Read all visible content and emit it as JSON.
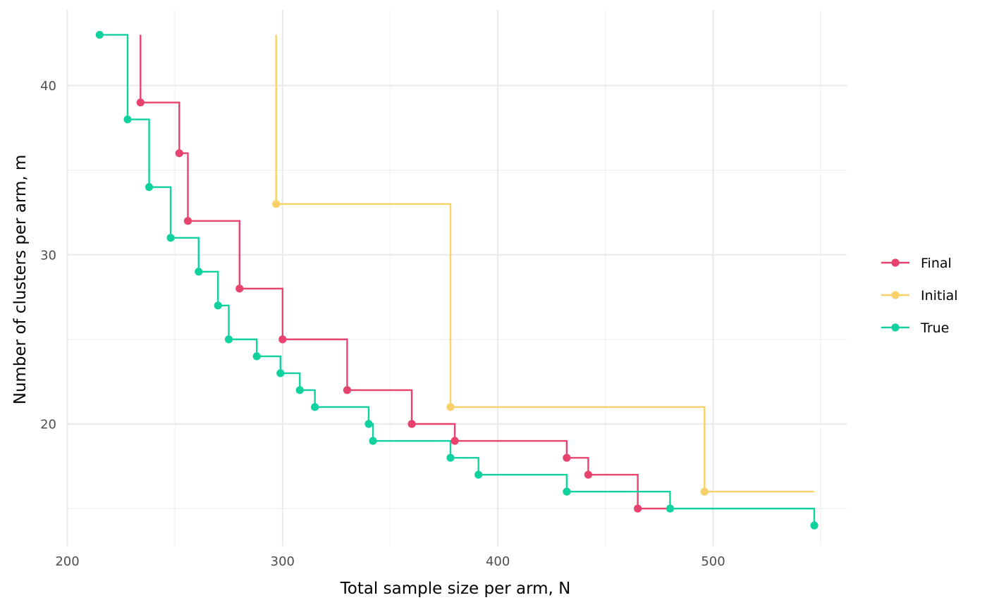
{
  "chart_data": {
    "type": "line",
    "subtype": "step",
    "title": "",
    "xlabel": "Total sample size per arm, N",
    "ylabel": "Number of clusters per arm, m",
    "xlim": [
      200,
      560
    ],
    "ylim": [
      13,
      43
    ],
    "x_ticks": [
      200,
      300,
      400,
      500
    ],
    "y_ticks": [
      20,
      30,
      40
    ],
    "x_tick_labels": [
      "200",
      "300",
      "400",
      "500"
    ],
    "y_tick_labels": [
      "20",
      "30",
      "40"
    ],
    "grid": true,
    "legend_position": "right",
    "series": [
      {
        "name": "Final",
        "color": "#e8426e",
        "points": [
          {
            "x": 234,
            "y": 39
          },
          {
            "x": 252,
            "y": 36
          },
          {
            "x": 256,
            "y": 32
          },
          {
            "x": 280,
            "y": 28
          },
          {
            "x": 300,
            "y": 25
          },
          {
            "x": 330,
            "y": 22
          },
          {
            "x": 360,
            "y": 20
          },
          {
            "x": 380,
            "y": 19
          },
          {
            "x": 432,
            "y": 18
          },
          {
            "x": 442,
            "y": 17
          },
          {
            "x": 465,
            "y": 15
          }
        ],
        "line_start": {
          "x": 234,
          "y": 43
        },
        "line_end": {
          "x": 480,
          "y": 15
        }
      },
      {
        "name": "Initial",
        "color": "#f9d06a",
        "points": [
          {
            "x": 297,
            "y": 33
          },
          {
            "x": 378,
            "y": 21
          },
          {
            "x": 496,
            "y": 16
          }
        ],
        "line_start": {
          "x": 297,
          "y": 43
        },
        "line_end": {
          "x": 547,
          "y": 16
        }
      },
      {
        "name": "True",
        "color": "#11d19f",
        "points": [
          {
            "x": 215,
            "y": 43
          },
          {
            "x": 228,
            "y": 38
          },
          {
            "x": 238,
            "y": 34
          },
          {
            "x": 248,
            "y": 31
          },
          {
            "x": 261,
            "y": 29
          },
          {
            "x": 270,
            "y": 27
          },
          {
            "x": 275,
            "y": 25
          },
          {
            "x": 288,
            "y": 24
          },
          {
            "x": 299,
            "y": 23
          },
          {
            "x": 308,
            "y": 22
          },
          {
            "x": 315,
            "y": 21
          },
          {
            "x": 340,
            "y": 20
          },
          {
            "x": 342,
            "y": 19
          },
          {
            "x": 378,
            "y": 18
          },
          {
            "x": 391,
            "y": 17
          },
          {
            "x": 432,
            "y": 16
          },
          {
            "x": 480,
            "y": 15
          },
          {
            "x": 547,
            "y": 14
          }
        ],
        "line_start": {
          "x": 215,
          "y": 43
        },
        "line_end": {
          "x": 547,
          "y": 14
        }
      }
    ]
  }
}
